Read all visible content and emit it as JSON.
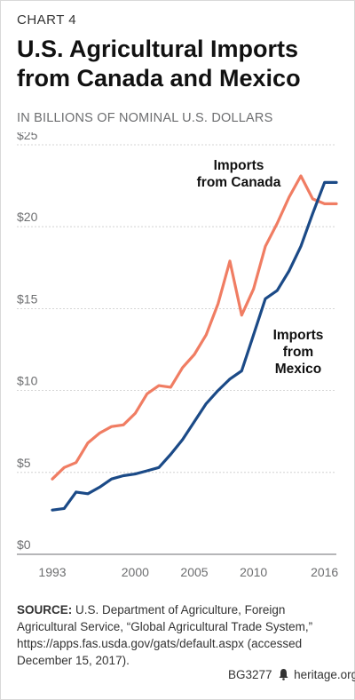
{
  "header": {
    "kicker": "CHART 4",
    "title": "U.S. Agricultural Imports from Canada and Mexico",
    "subtitle": "IN BILLIONS OF NOMINAL U.S. DOLLARS"
  },
  "chart_data": {
    "type": "line",
    "title": "U.S. Agricultural Imports from Canada and Mexico",
    "subtitle": "IN BILLIONS OF NOMINAL U.S. DOLLARS",
    "xlabel": "",
    "ylabel": "",
    "xlim": [
      1993,
      2017
    ],
    "ylim": [
      0,
      25
    ],
    "x_ticks": [
      1993,
      2000,
      2005,
      2010,
      2016
    ],
    "y_ticks": [
      0,
      5,
      10,
      15,
      20,
      25
    ],
    "y_tick_labels": [
      "$0",
      "$5",
      "$10",
      "$15",
      "$20",
      "$25"
    ],
    "grid": true,
    "x": [
      1993,
      1994,
      1995,
      1996,
      1997,
      1998,
      1999,
      2000,
      2001,
      2002,
      2003,
      2004,
      2005,
      2006,
      2007,
      2008,
      2009,
      2010,
      2011,
      2012,
      2013,
      2014,
      2015,
      2016,
      2017
    ],
    "series": [
      {
        "name": "Imports from Canada",
        "color": "#f07d63",
        "values": [
          4.6,
          5.3,
          5.6,
          6.8,
          7.4,
          7.8,
          7.9,
          8.6,
          9.8,
          10.3,
          10.2,
          11.4,
          12.2,
          13.4,
          15.3,
          17.9,
          14.6,
          16.2,
          18.8,
          20.2,
          21.8,
          23.1,
          21.7,
          21.4,
          21.4
        ]
      },
      {
        "name": "Imports from Mexico",
        "color": "#1b4a87",
        "values": [
          2.7,
          2.8,
          3.8,
          3.7,
          4.1,
          4.6,
          4.8,
          4.9,
          5.1,
          5.3,
          6.1,
          7.0,
          8.1,
          9.2,
          10.0,
          10.7,
          11.2,
          13.4,
          15.6,
          16.1,
          17.3,
          18.8,
          20.8,
          22.7,
          22.7
        ]
      }
    ],
    "annotations": [
      {
        "series": "Imports from Canada",
        "lines": [
          "Imports",
          "from Canada"
        ]
      },
      {
        "series": "Imports from Mexico",
        "lines": [
          "Imports",
          "from",
          "Mexico"
        ]
      }
    ]
  },
  "footer": {
    "source_label": "SOURCE:",
    "source_text": "U.S. Department of Agriculture, Foreign Agricultural Service, “Global Agricultural Trade System,” https://apps.fas.usda.gov/gats/default.aspx (accessed December 15, 2017).",
    "report_id": "BG3277",
    "site": "heritage.org",
    "logo_icon": "liberty-bell-icon"
  }
}
